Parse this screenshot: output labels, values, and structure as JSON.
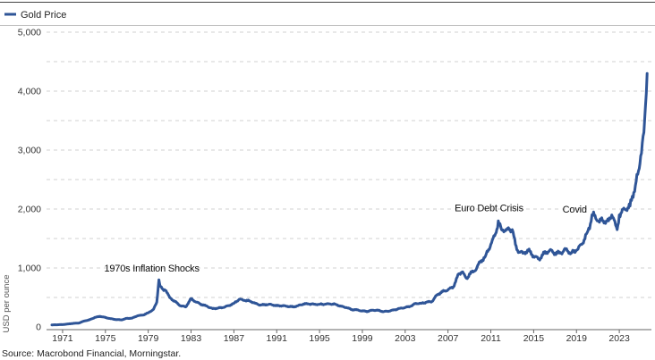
{
  "chart_data": {
    "type": "line",
    "title": "",
    "xlabel": "",
    "ylabel": "USD per ounce",
    "ylim": [
      0,
      5000
    ],
    "grid": true,
    "legend_position": "top-left",
    "yticks": [
      0,
      1000,
      2000,
      3000,
      4000,
      5000
    ],
    "ytick_labels": [
      "0",
      "1,000",
      "2,000",
      "3,000",
      "4,000",
      "5,000"
    ],
    "xticks": [
      1971,
      1975,
      1979,
      1983,
      1987,
      1991,
      1995,
      1999,
      2003,
      2007,
      2011,
      2015,
      2019,
      2023
    ],
    "xtick_labels": [
      "1971",
      "1975",
      "1979",
      "1983",
      "1987",
      "1991",
      "1995",
      "1999",
      "2003",
      "2007",
      "2011",
      "2015",
      "2019",
      "2023"
    ],
    "series": [
      {
        "name": "Gold Price",
        "color": "#2f5597",
        "x": [
          1970.0,
          1971.0,
          1972.0,
          1972.5,
          1973.0,
          1973.5,
          1974.0,
          1974.5,
          1975.0,
          1975.5,
          1976.0,
          1976.5,
          1977.0,
          1977.5,
          1978.0,
          1978.5,
          1979.0,
          1979.5,
          1979.8,
          1980.0,
          1980.1,
          1980.3,
          1980.6,
          1981.0,
          1981.5,
          1982.0,
          1982.5,
          1983.0,
          1983.5,
          1984.0,
          1984.5,
          1985.0,
          1985.5,
          1986.0,
          1986.5,
          1987.0,
          1987.5,
          1988.0,
          1988.5,
          1989.0,
          1989.5,
          1990.0,
          1990.5,
          1991.0,
          1991.5,
          1992.0,
          1992.5,
          1993.0,
          1993.5,
          1994.0,
          1994.5,
          1995.0,
          1995.5,
          1996.0,
          1996.5,
          1997.0,
          1997.5,
          1998.0,
          1998.5,
          1999.0,
          1999.5,
          2000.0,
          2000.5,
          2001.0,
          2001.5,
          2002.0,
          2002.5,
          2003.0,
          2003.5,
          2004.0,
          2004.5,
          2005.0,
          2005.5,
          2006.0,
          2006.5,
          2007.0,
          2007.5,
          2008.0,
          2008.3,
          2008.8,
          2009.0,
          2009.5,
          2010.0,
          2010.5,
          2011.0,
          2011.5,
          2011.7,
          2012.0,
          2012.5,
          2013.0,
          2013.3,
          2013.5,
          2014.0,
          2014.5,
          2015.0,
          2015.5,
          2016.0,
          2016.5,
          2017.0,
          2017.5,
          2018.0,
          2018.5,
          2019.0,
          2019.5,
          2020.0,
          2020.3,
          2020.6,
          2021.0,
          2021.5,
          2022.0,
          2022.3,
          2022.8,
          2023.0,
          2023.5,
          2024.0,
          2024.5,
          2024.8,
          2025.0,
          2025.3,
          2025.6
        ],
        "values": [
          35,
          40,
          60,
          65,
          100,
          120,
          160,
          180,
          160,
          140,
          125,
          120,
          145,
          150,
          190,
          200,
          240,
          300,
          420,
          800,
          700,
          650,
          620,
          500,
          430,
          360,
          340,
          480,
          420,
          380,
          350,
          310,
          320,
          330,
          360,
          400,
          470,
          450,
          440,
          400,
          370,
          380,
          380,
          360,
          360,
          350,
          340,
          360,
          390,
          390,
          385,
          385,
          385,
          390,
          385,
          350,
          330,
          295,
          290,
          270,
          265,
          285,
          280,
          260,
          270,
          290,
          315,
          330,
          350,
          400,
          400,
          420,
          430,
          550,
          600,
          630,
          680,
          900,
          930,
          820,
          900,
          950,
          1100,
          1200,
          1400,
          1600,
          1800,
          1650,
          1650,
          1650,
          1400,
          1300,
          1250,
          1300,
          1200,
          1150,
          1250,
          1300,
          1250,
          1250,
          1320,
          1250,
          1300,
          1400,
          1600,
          1750,
          1950,
          1800,
          1800,
          1800,
          1900,
          1650,
          1900,
          2000,
          2050,
          2400,
          2650,
          2900,
          3300,
          4300
        ]
      }
    ],
    "annotations": [
      {
        "text": "1970s Inflation Shocks",
        "x": 1980,
        "y": 1000
      },
      {
        "text": "Euro Debt Crisis",
        "x": 2011.5,
        "y": 2020
      },
      {
        "text": "Covid",
        "x": 2019.5,
        "y": 2000
      }
    ],
    "source": "Source: Macrobond Financial, Morningstar."
  }
}
